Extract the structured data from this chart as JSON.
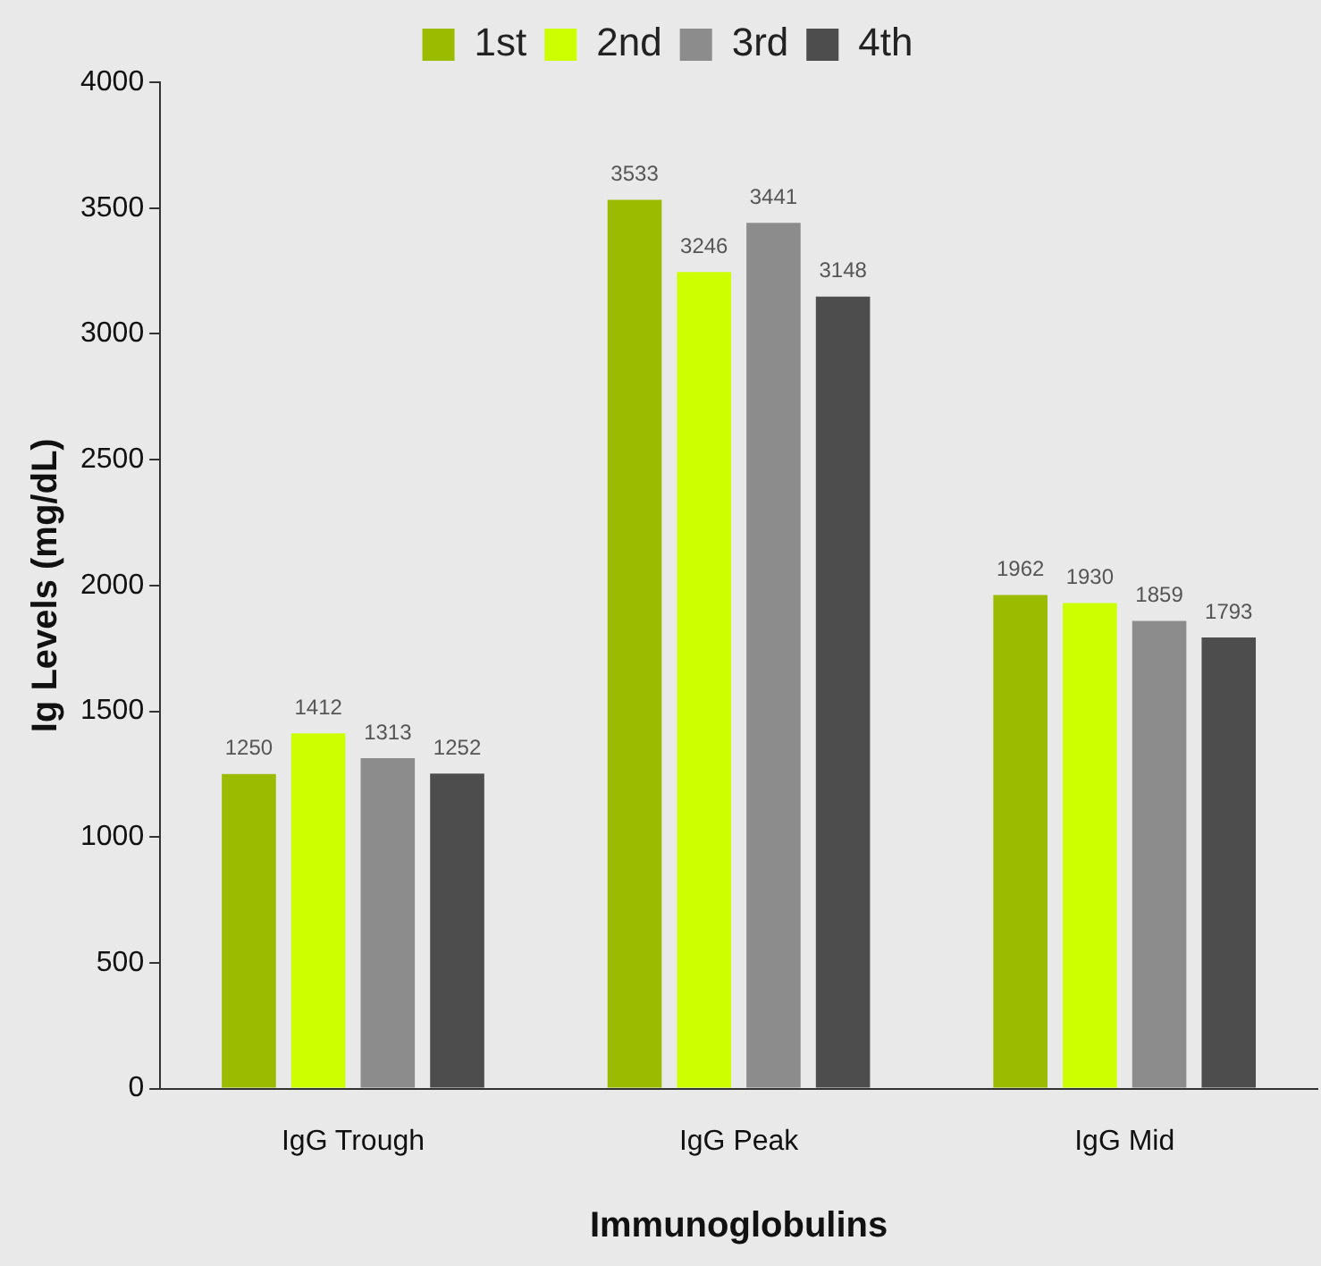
{
  "chart_data": {
    "type": "bar",
    "xlabel": "Immunoglobulins",
    "ylabel": "Ig Levels (mg/dL)",
    "categories": [
      "IgG Trough",
      "IgG Peak",
      "IgG Mid"
    ],
    "series": [
      {
        "name": "1st",
        "color": "#9bbb00",
        "values": [
          1250,
          3533,
          1962
        ]
      },
      {
        "name": "2nd",
        "color": "#ccff00",
        "values": [
          1412,
          3246,
          1930
        ]
      },
      {
        "name": "3rd",
        "color": "#8c8c8c",
        "values": [
          1313,
          3441,
          1859
        ]
      },
      {
        "name": "4th",
        "color": "#4d4d4d",
        "values": [
          1252,
          3148,
          1793
        ]
      }
    ],
    "ylim": [
      0,
      4000
    ],
    "yticks": [
      0,
      500,
      1000,
      1500,
      2000,
      2500,
      3000,
      3500,
      4000
    ],
    "grid": false,
    "legend": "top",
    "data_labels": true
  }
}
